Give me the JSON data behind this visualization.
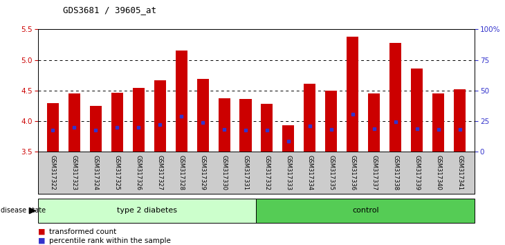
{
  "title": "GDS3681 / 39605_at",
  "samples": [
    "GSM317322",
    "GSM317323",
    "GSM317324",
    "GSM317325",
    "GSM317326",
    "GSM317327",
    "GSM317328",
    "GSM317329",
    "GSM317330",
    "GSM317331",
    "GSM317332",
    "GSM317333",
    "GSM317334",
    "GSM317335",
    "GSM317336",
    "GSM317337",
    "GSM317338",
    "GSM317339",
    "GSM317340",
    "GSM317341"
  ],
  "bar_heights": [
    4.3,
    4.45,
    4.25,
    4.47,
    4.55,
    4.67,
    5.15,
    4.69,
    4.38,
    4.36,
    4.29,
    3.94,
    4.61,
    4.5,
    5.38,
    4.46,
    5.28,
    4.86,
    4.46,
    4.52
  ],
  "bar_bottom": 3.5,
  "blue_markers": [
    3.86,
    3.9,
    3.86,
    3.9,
    3.9,
    3.95,
    4.08,
    3.98,
    3.87,
    3.86,
    3.86,
    3.67,
    3.92,
    3.87,
    4.12,
    3.88,
    3.99,
    3.88,
    3.87,
    3.87
  ],
  "bar_color": "#cc0000",
  "marker_color": "#3333cc",
  "ylim_left": [
    3.5,
    5.5
  ],
  "ylim_right": [
    0,
    100
  ],
  "yticks_left": [
    3.5,
    4.0,
    4.5,
    5.0,
    5.5
  ],
  "yticks_right": [
    0,
    25,
    50,
    75,
    100
  ],
  "ytick_labels_right": [
    "0",
    "25",
    "50",
    "75",
    "100%"
  ],
  "grid_values": [
    4.0,
    4.5,
    5.0
  ],
  "group1_label": "type 2 diabetes",
  "group2_label": "control",
  "group1_count": 10,
  "group2_count": 10,
  "disease_state_label": "disease state",
  "legend_bar_label": "transformed count",
  "legend_marker_label": "percentile rank within the sample",
  "bar_width": 0.55,
  "tick_area_bg": "#cccccc",
  "group1_bg": "#ccffcc",
  "group2_bg": "#55cc55",
  "left_tick_color": "#cc0000",
  "right_tick_color": "#3333cc"
}
